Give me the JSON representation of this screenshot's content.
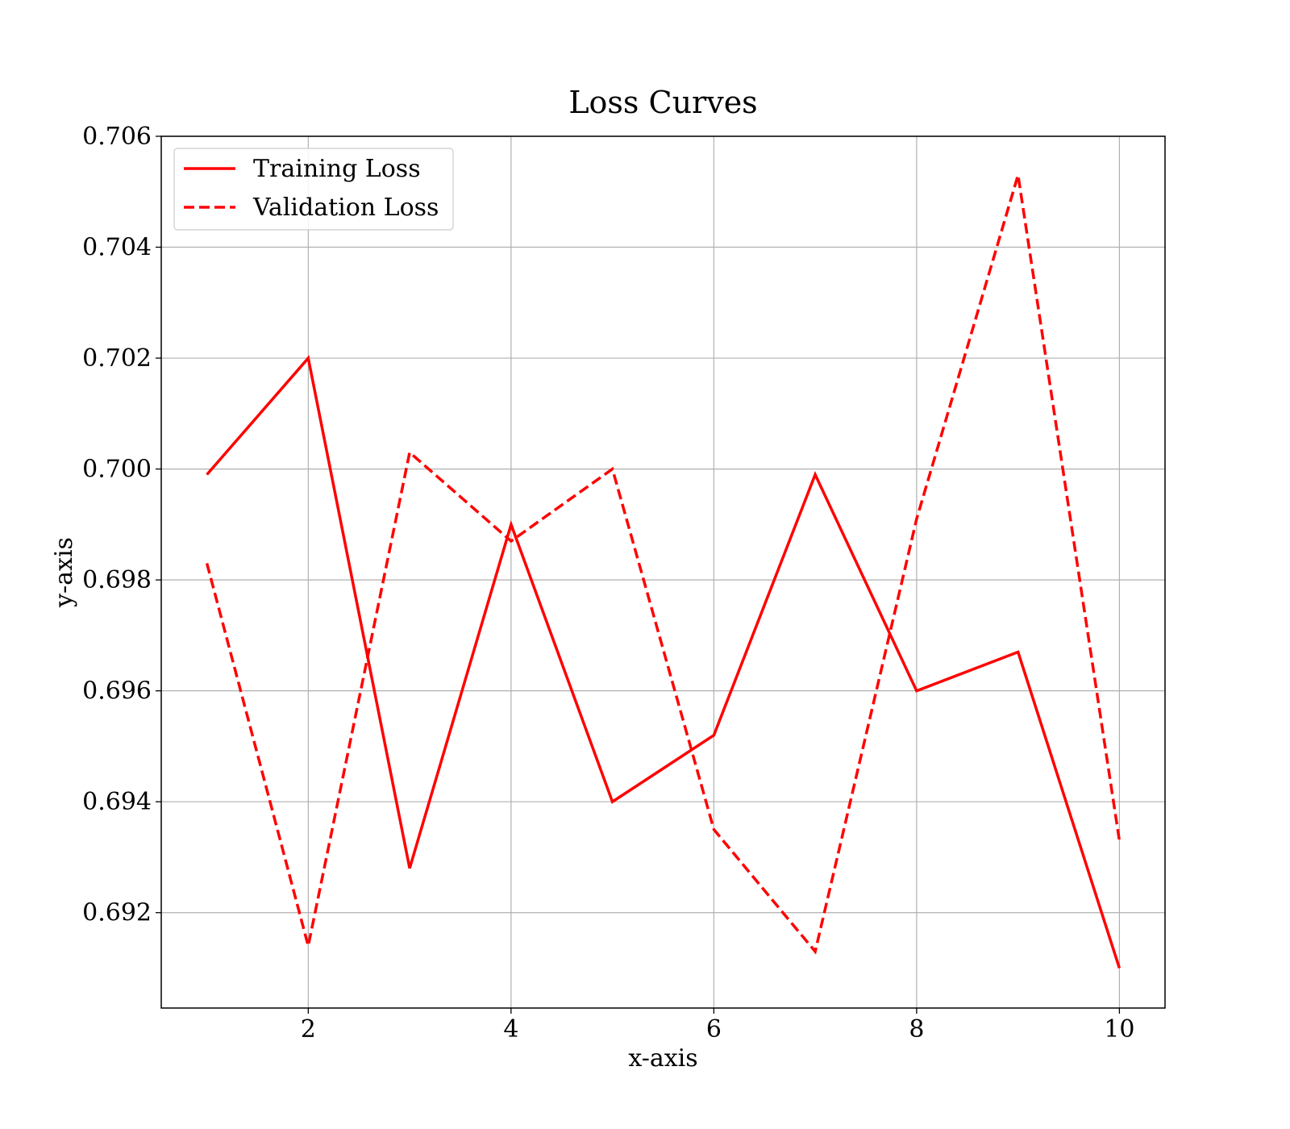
{
  "chart_data": {
    "type": "line",
    "title": "Loss Curves",
    "xlabel": "x-axis",
    "ylabel": "y-axis",
    "xlim": [
      0.55,
      10.45
    ],
    "ylim": [
      0.69028,
      0.706
    ],
    "xticks": [
      2,
      4,
      6,
      8,
      10
    ],
    "xtick_labels": [
      "2",
      "4",
      "6",
      "8",
      "10"
    ],
    "yticks": [
      0.692,
      0.694,
      0.696,
      0.698,
      0.7,
      0.702,
      0.704,
      0.706
    ],
    "ytick_labels": [
      "0.692",
      "0.694",
      "0.696",
      "0.698",
      "0.700",
      "0.702",
      "0.704",
      "0.706"
    ],
    "grid": true,
    "legend_position": "top-left",
    "x": [
      1,
      2,
      3,
      4,
      5,
      6,
      7,
      8,
      9,
      10
    ],
    "series": [
      {
        "name": "Training Loss",
        "style": "solid",
        "color": "#ff0000",
        "values": [
          0.6999,
          0.702,
          0.6928,
          0.699,
          0.694,
          0.6952,
          0.6999,
          0.696,
          0.6967,
          0.691
        ]
      },
      {
        "name": "Validation Loss",
        "style": "dashed",
        "color": "#ff0000",
        "values": [
          0.6983,
          0.6914,
          0.7003,
          0.6987,
          0.7,
          0.6935,
          0.6913,
          0.6991,
          0.7053,
          0.6933
        ]
      }
    ]
  }
}
